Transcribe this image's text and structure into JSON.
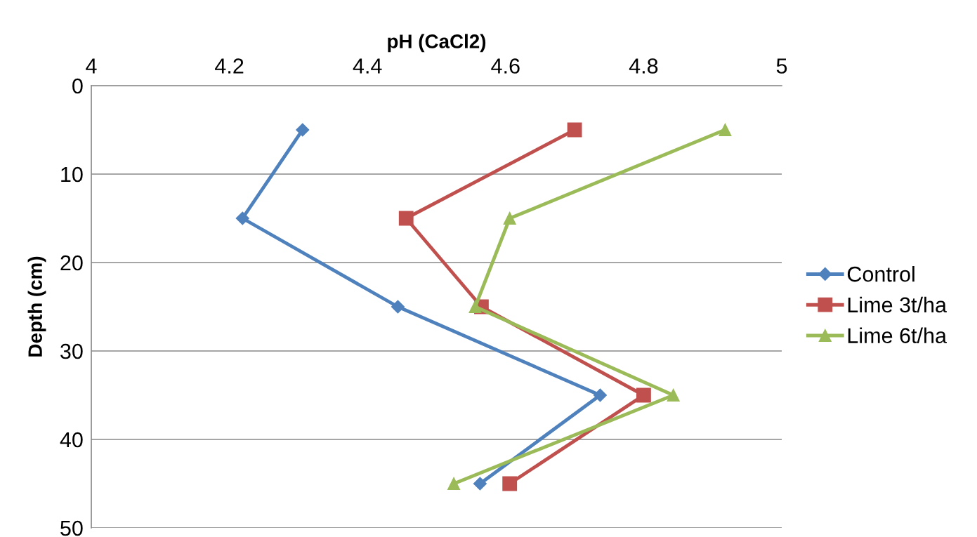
{
  "chart_data": {
    "type": "line",
    "xlabel": "pH (CaCl2)",
    "ylabel": "Depth (cm)",
    "xlim": [
      4,
      5
    ],
    "xticks": [
      4,
      4.2,
      4.4,
      4.6,
      4.8,
      5
    ],
    "ylim": [
      50,
      0
    ],
    "yticks": [
      0,
      10,
      20,
      30,
      40,
      50
    ],
    "grid": "y",
    "legend": "right",
    "series": [
      {
        "name": "Control",
        "color": "#4f81bd",
        "marker": "diamond",
        "x": [
          4.306,
          4.219,
          4.444,
          4.737,
          4.563
        ],
        "values": [
          5,
          15,
          25,
          35,
          45
        ]
      },
      {
        "name": "Lime 3t/ha",
        "color": "#c0504d",
        "marker": "square",
        "x": [
          4.7,
          4.456,
          4.565,
          4.8,
          4.606
        ],
        "values": [
          5,
          15,
          25,
          35,
          45
        ]
      },
      {
        "name": "Lime 6t/ha",
        "color": "#9bbb59",
        "marker": "triangle",
        "x": [
          4.918,
          4.606,
          4.556,
          4.843,
          4.525
        ],
        "values": [
          5,
          15,
          25,
          35,
          45
        ]
      }
    ]
  }
}
